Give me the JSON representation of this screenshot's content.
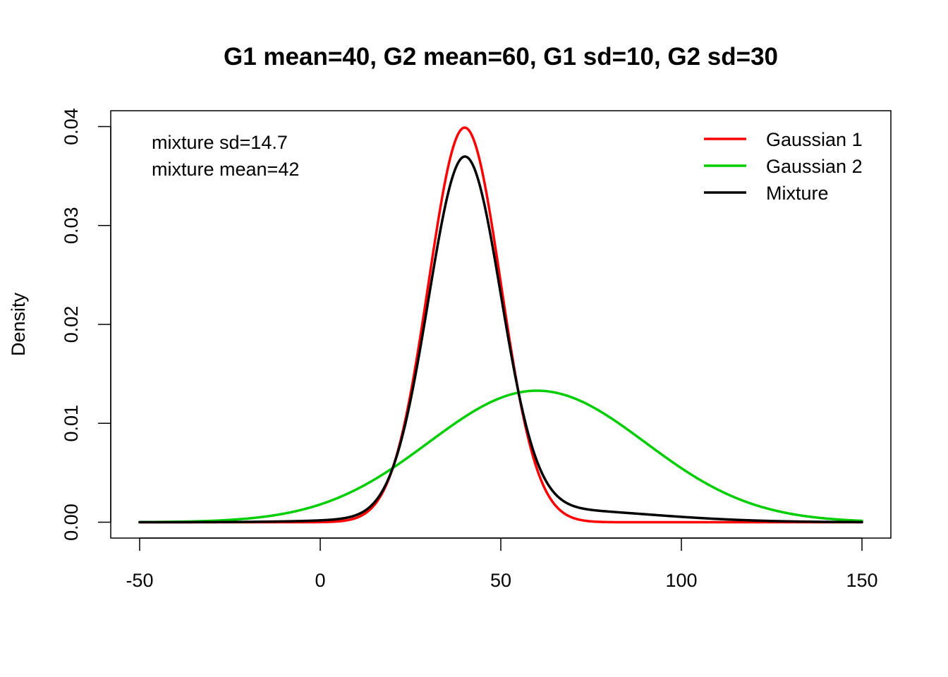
{
  "chart_data": {
    "type": "line",
    "title": "G1 mean=40, G2 mean=60, G1 sd=10, G2 sd=30",
    "xlabel": "",
    "ylabel": "Density",
    "xlim": [
      -58,
      158
    ],
    "ylim": [
      -0.0016,
      0.0416
    ],
    "xticks": [
      -50,
      0,
      50,
      100,
      150
    ],
    "xtick_labels": [
      "-50",
      "0",
      "50",
      "100",
      "150"
    ],
    "yticks": [
      0.0,
      0.01,
      0.02,
      0.03,
      0.04
    ],
    "ytick_labels": [
      "0.00",
      "0.01",
      "0.02",
      "0.03",
      "0.04"
    ],
    "grid": false,
    "legend_position": "top-right",
    "annotations": [
      "mixture sd=14.7",
      "mixture mean=42"
    ],
    "x_range": [
      -50,
      150
    ],
    "series": [
      {
        "name": "Gaussian 1",
        "color": "#ff0000",
        "mean": 40,
        "sd": 10,
        "weight": 1.0
      },
      {
        "name": "Gaussian 2",
        "color": "#00cd00",
        "mean": 60,
        "sd": 30,
        "weight": 1.0
      },
      {
        "name": "Mixture",
        "color": "#000000",
        "components": [
          {
            "mean": 40,
            "sd": 10,
            "weight": 0.9
          },
          {
            "mean": 60,
            "sd": 30,
            "weight": 0.1
          }
        ]
      }
    ]
  }
}
